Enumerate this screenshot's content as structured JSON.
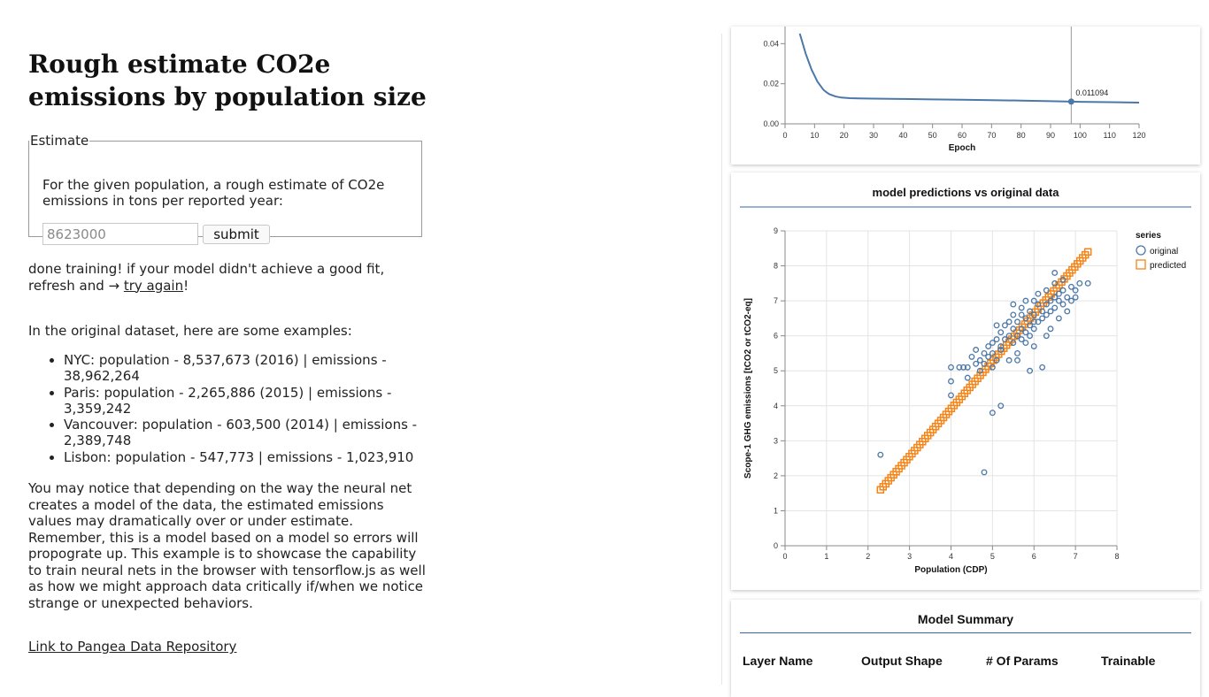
{
  "page": {
    "title": "Rough estimate CO2e emissions by population size"
  },
  "estimate": {
    "legend": "Estimate",
    "description": "For the given population, a rough estimate of CO2e emissions in tons per reported year:",
    "input_value": "8623000",
    "submit_label": "submit"
  },
  "status": {
    "text": "done training! if your model didn't achieve a good fit, refresh and → ",
    "link": "try again",
    "suffix": "!"
  },
  "examples": {
    "intro": "In the original dataset, here are some examples:",
    "items": [
      "NYC: population - 8,537,673 (2016) | emissions - 38,962,264",
      "Paris: population - 2,265,886 (2015) | emissions - 3,359,242",
      "Vancouver: population - 603,500 (2014) | emissions - 2,389,748",
      "Lisbon: population - 547,773 | emissions - 1,023,910"
    ]
  },
  "notice": "You may notice that depending on the way the neural net creates a model of the data, the estimated emissions values may dramatically over or under estimate. Remember, this is a model based on a model so errors will propograte up. This example is to showcase the capability to train neural nets in the browser with tensorflow.js as well as how we might approach data critically if/when we notice strange or unexpected behaviors.",
  "footer_link": "Link to Pangea Data Repository",
  "colors": {
    "original": "#4c78a8",
    "predicted": "#f58518",
    "accent": "#3366aa"
  },
  "summary": {
    "title": "Model Summary",
    "columns": [
      "Layer Name",
      "Output Shape",
      "# Of Params",
      "Trainable"
    ]
  },
  "chart_data": [
    {
      "type": "line",
      "title": "",
      "xlabel": "Epoch",
      "ylabel": "",
      "xlim": [
        0,
        120
      ],
      "ylim": [
        0,
        0.045
      ],
      "x_ticks": [
        0,
        10,
        20,
        30,
        40,
        50,
        60,
        70,
        80,
        90,
        100,
        110,
        120
      ],
      "y_ticks": [
        "0.00",
        "0.02",
        "0.04"
      ],
      "series": [
        {
          "x": [
            5,
            6,
            7,
            8,
            9,
            10,
            11,
            12,
            13,
            14,
            15,
            17,
            19,
            22,
            25,
            30,
            40,
            50,
            60,
            70,
            80,
            90,
            97,
            100,
            110,
            120
          ],
          "y": [
            0.045,
            0.04,
            0.035,
            0.031,
            0.027,
            0.024,
            0.021,
            0.019,
            0.017,
            0.0158,
            0.0148,
            0.0137,
            0.0131,
            0.0128,
            0.0127,
            0.0126,
            0.0124,
            0.0122,
            0.012,
            0.0118,
            0.0116,
            0.0113,
            0.011094,
            0.011,
            0.0108,
            0.0106
          ]
        }
      ],
      "rule_x": 97,
      "annotation": {
        "x": 97,
        "y": 0.011094,
        "label": "0.011094"
      }
    },
    {
      "type": "scatter",
      "title": "model predictions vs original data",
      "xlabel": "Population (CDP)",
      "ylabel": "Scope-1 GHG emissions [tCO2 or tCO2-eq]",
      "xlim": [
        0,
        8
      ],
      "ylim": [
        0,
        9
      ],
      "x_ticks": [
        0,
        1,
        2,
        3,
        4,
        5,
        6,
        7,
        8
      ],
      "y_ticks": [
        0,
        1,
        2,
        3,
        4,
        5,
        6,
        7,
        8,
        9
      ],
      "legend": {
        "title": "series",
        "position": "right",
        "items": [
          "original",
          "predicted"
        ]
      },
      "grid": true,
      "series": [
        {
          "name": "original",
          "marker": "circle",
          "points": [
            [
              2.3,
              2.6
            ],
            [
              4.8,
              2.1
            ],
            [
              5.0,
              3.8
            ],
            [
              5.2,
              4.0
            ],
            [
              4.0,
              4.7
            ],
            [
              4.0,
              4.3
            ],
            [
              4.0,
              5.1
            ],
            [
              4.2,
              5.1
            ],
            [
              4.3,
              5.1
            ],
            [
              4.4,
              5.1
            ],
            [
              4.4,
              4.8
            ],
            [
              4.5,
              5.4
            ],
            [
              4.6,
              5.2
            ],
            [
              4.6,
              5.6
            ],
            [
              4.7,
              5.3
            ],
            [
              4.7,
              5.0
            ],
            [
              4.8,
              5.5
            ],
            [
              4.8,
              5.2
            ],
            [
              4.9,
              5.7
            ],
            [
              5.0,
              5.5
            ],
            [
              5.0,
              5.8
            ],
            [
              5.0,
              5.1
            ],
            [
              5.1,
              5.9
            ],
            [
              5.1,
              6.3
            ],
            [
              5.2,
              5.7
            ],
            [
              5.2,
              6.1
            ],
            [
              5.3,
              5.9
            ],
            [
              5.3,
              6.3
            ],
            [
              5.4,
              6.0
            ],
            [
              5.4,
              6.4
            ],
            [
              5.4,
              5.3
            ],
            [
              5.5,
              6.2
            ],
            [
              5.5,
              5.8
            ],
            [
              5.5,
              6.6
            ],
            [
              5.6,
              6.0
            ],
            [
              5.6,
              6.4
            ],
            [
              5.6,
              5.5
            ],
            [
              5.7,
              6.2
            ],
            [
              5.7,
              6.8
            ],
            [
              5.7,
              5.9
            ],
            [
              5.8,
              6.5
            ],
            [
              5.8,
              6.1
            ],
            [
              5.8,
              7.0
            ],
            [
              5.9,
              6.3
            ],
            [
              5.9,
              6.7
            ],
            [
              5.9,
              6.0
            ],
            [
              5.9,
              5.0
            ],
            [
              6.0,
              6.6
            ],
            [
              6.0,
              7.0
            ],
            [
              6.0,
              6.2
            ],
            [
              6.0,
              5.7
            ],
            [
              6.1,
              6.9
            ],
            [
              6.1,
              6.4
            ],
            [
              6.1,
              7.2
            ],
            [
              6.2,
              6.7
            ],
            [
              6.2,
              6.5
            ],
            [
              6.2,
              5.1
            ],
            [
              6.3,
              6.9
            ],
            [
              6.3,
              7.3
            ],
            [
              6.3,
              6.6
            ],
            [
              6.3,
              6.0
            ],
            [
              6.4,
              7.0
            ],
            [
              6.4,
              6.7
            ],
            [
              6.4,
              6.2
            ],
            [
              6.5,
              7.1
            ],
            [
              6.5,
              6.8
            ],
            [
              6.5,
              7.5
            ],
            [
              6.6,
              7.0
            ],
            [
              6.6,
              6.5
            ],
            [
              6.6,
              7.2
            ],
            [
              6.7,
              7.3
            ],
            [
              6.7,
              6.9
            ],
            [
              6.7,
              7.6
            ],
            [
              6.8,
              7.1
            ],
            [
              6.8,
              6.7
            ],
            [
              6.9,
              7.0
            ],
            [
              6.9,
              7.4
            ],
            [
              7.0,
              7.3
            ],
            [
              7.0,
              7.1
            ],
            [
              7.1,
              7.5
            ],
            [
              7.3,
              7.5
            ],
            [
              5.5,
              6.9
            ],
            [
              5.6,
              5.3
            ],
            [
              5.2,
              5.6
            ],
            [
              5.1,
              5.3
            ],
            [
              4.9,
              5.4
            ],
            [
              6.5,
              7.8
            ],
            [
              6.0,
              6.4
            ],
            [
              5.8,
              5.8
            ],
            [
              5.7,
              6.6
            ]
          ]
        },
        {
          "name": "predicted",
          "marker": "square",
          "line": {
            "x": [
              2.3,
              7.3
            ],
            "y": [
              1.6,
              8.4
            ],
            "count": 80
          }
        }
      ]
    }
  ]
}
